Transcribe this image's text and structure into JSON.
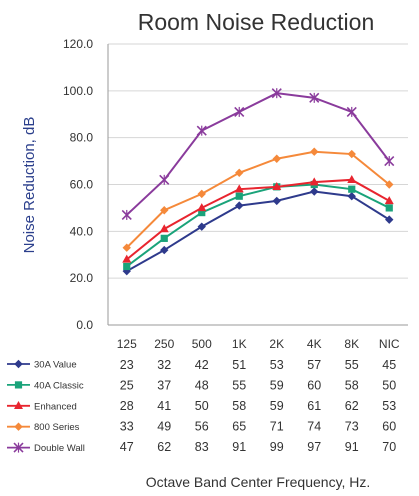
{
  "chart_data": {
    "type": "line",
    "title": "Room Noise Reduction",
    "ylabel": "Noise Reduction, dB",
    "xlabel": "Octave Band Center Frequency, Hz.",
    "categories": [
      "125",
      "250",
      "500",
      "1K",
      "2K",
      "4K",
      "8K",
      "NIC"
    ],
    "ylim": [
      0,
      120
    ],
    "yticks": [
      "0.0",
      "20.0",
      "40.0",
      "60.0",
      "80.0",
      "100.0",
      "120.0"
    ],
    "grid": true,
    "legend_position": "bottom-left",
    "series": [
      {
        "name": "30A Value",
        "color": "#2e3a8c",
        "marker": "diamond",
        "values": [
          23,
          32,
          42,
          51,
          53,
          57,
          55,
          45
        ]
      },
      {
        "name": "40A Classic",
        "color": "#1aa37a",
        "marker": "square",
        "values": [
          25,
          37,
          48,
          55,
          59,
          60,
          58,
          50
        ]
      },
      {
        "name": "Enhanced",
        "color": "#e8252f",
        "marker": "triangle",
        "values": [
          28,
          41,
          50,
          58,
          59,
          61,
          62,
          53
        ]
      },
      {
        "name": "800 Series",
        "color": "#f5893a",
        "marker": "diamond",
        "values": [
          33,
          49,
          56,
          65,
          71,
          74,
          73,
          60
        ]
      },
      {
        "name": "Double Wall",
        "color": "#8a3b9c",
        "marker": "x",
        "values": [
          47,
          62,
          83,
          91,
          99,
          97,
          91,
          70
        ]
      }
    ]
  }
}
